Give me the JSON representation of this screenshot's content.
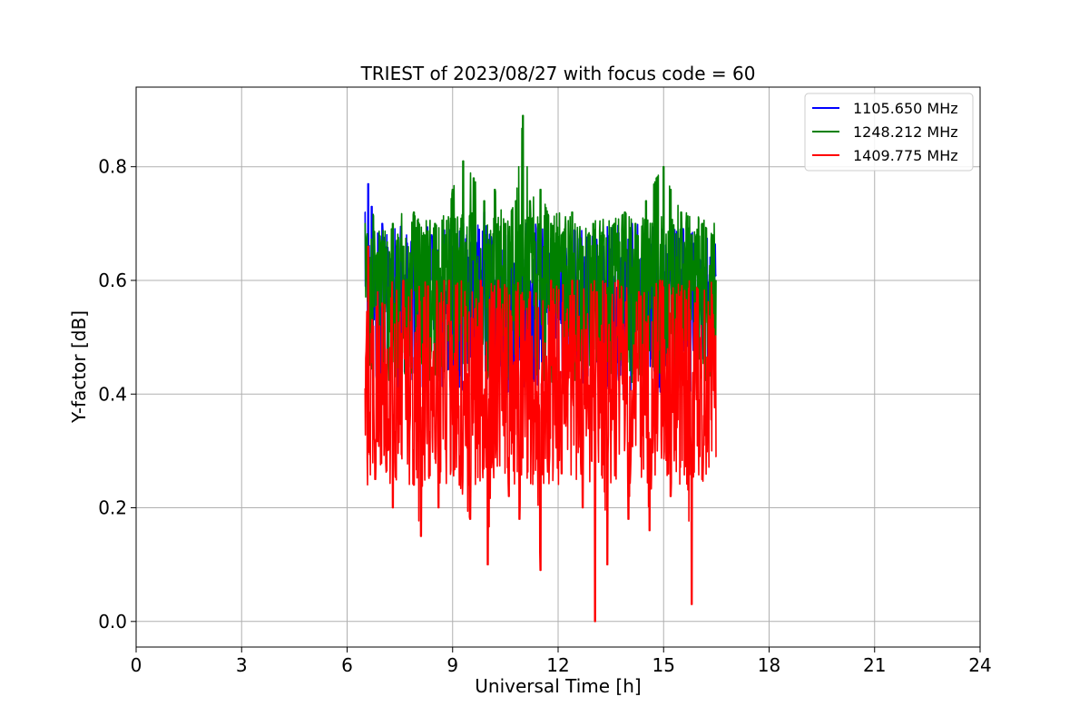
{
  "chart_data": {
    "type": "line",
    "title": "TRIEST of 2023/08/27 with focus code = 60",
    "xlabel": "Universal Time [h]",
    "ylabel": "Y-factor [dB]",
    "xlim": [
      0,
      24
    ],
    "ylim": [
      -0.045,
      0.94
    ],
    "xticks": [
      0,
      3,
      6,
      9,
      12,
      15,
      18,
      21,
      24
    ],
    "xtick_labels": [
      "0",
      "3",
      "6",
      "9",
      "12",
      "15",
      "18",
      "21",
      "24"
    ],
    "yticks": [
      0.0,
      0.2,
      0.4,
      0.6,
      0.8
    ],
    "ytick_labels": [
      "0.0",
      "0.2",
      "0.4",
      "0.6",
      "0.8"
    ],
    "grid": true,
    "legend_position": "top-right",
    "series": [
      {
        "name": "1105.650 MHz",
        "color": "#0000ff",
        "x": [
          6.5,
          6.55,
          6.6,
          6.65,
          6.7,
          6.8,
          6.9,
          7.0,
          7.2,
          7.4,
          7.6,
          7.8,
          8.0,
          8.2,
          8.4,
          8.6,
          8.8,
          9.0,
          9.3,
          9.6,
          9.9,
          10.2,
          10.5,
          10.8,
          11.1,
          11.4,
          11.7,
          12.0,
          12.3,
          12.6,
          12.9,
          13.2,
          13.5,
          13.8,
          14.1,
          14.4,
          14.6,
          14.8,
          15.0,
          15.2,
          15.4,
          15.6,
          15.8,
          16.0,
          16.2,
          16.4,
          16.5
        ],
        "y": [
          0.72,
          0.6,
          0.77,
          0.55,
          0.73,
          0.6,
          0.64,
          0.7,
          0.58,
          0.66,
          0.6,
          0.63,
          0.56,
          0.6,
          0.68,
          0.62,
          0.58,
          0.66,
          0.7,
          0.64,
          0.72,
          0.6,
          0.68,
          0.62,
          0.7,
          0.6,
          0.64,
          0.58,
          0.62,
          0.6,
          0.56,
          0.62,
          0.58,
          0.64,
          0.7,
          0.58,
          0.66,
          0.6,
          0.64,
          0.6,
          0.62,
          0.58,
          0.6,
          0.64,
          0.62,
          0.6,
          0.61
        ]
      },
      {
        "name": "1248.212 MHz",
        "color": "#008000",
        "x": [
          6.5,
          6.6,
          6.8,
          7.0,
          7.3,
          7.6,
          7.9,
          8.2,
          8.5,
          8.8,
          9.0,
          9.3,
          9.6,
          9.9,
          10.2,
          10.5,
          10.8,
          11.0,
          11.2,
          11.5,
          11.8,
          12.1,
          12.4,
          12.7,
          13.0,
          13.3,
          13.6,
          13.9,
          14.2,
          14.5,
          14.8,
          15.0,
          15.2,
          15.5,
          15.8,
          16.1,
          16.4,
          16.5
        ],
        "y": [
          0.7,
          0.66,
          0.64,
          0.67,
          0.7,
          0.66,
          0.72,
          0.68,
          0.7,
          0.68,
          0.76,
          0.81,
          0.78,
          0.74,
          0.76,
          0.7,
          0.74,
          0.89,
          0.74,
          0.76,
          0.7,
          0.68,
          0.72,
          0.66,
          0.7,
          0.68,
          0.7,
          0.72,
          0.7,
          0.74,
          0.78,
          0.8,
          0.76,
          0.72,
          0.68,
          0.7,
          0.68,
          0.6
        ]
      },
      {
        "name": "1409.775 MHz",
        "color": "#ff0000",
        "x": [
          6.5,
          6.6,
          6.8,
          7.0,
          7.3,
          7.6,
          7.9,
          8.1,
          8.3,
          8.6,
          8.9,
          9.2,
          9.5,
          9.8,
          10.0,
          10.3,
          10.6,
          10.9,
          11.2,
          11.5,
          11.8,
          12.1,
          12.4,
          12.7,
          13.0,
          13.05,
          13.1,
          13.4,
          13.7,
          14.0,
          14.3,
          14.6,
          14.9,
          15.2,
          15.5,
          15.8,
          15.9,
          16.1,
          16.4,
          16.5
        ],
        "y": [
          0.41,
          0.66,
          0.25,
          0.56,
          0.2,
          0.6,
          0.24,
          0.15,
          0.59,
          0.2,
          0.6,
          0.24,
          0.18,
          0.6,
          0.1,
          0.6,
          0.22,
          0.18,
          0.58,
          0.09,
          0.6,
          0.26,
          0.6,
          0.2,
          0.58,
          0.0,
          0.58,
          0.1,
          0.6,
          0.18,
          0.58,
          0.16,
          0.6,
          0.22,
          0.58,
          0.03,
          0.56,
          0.25,
          0.54,
          0.29
        ]
      }
    ]
  }
}
